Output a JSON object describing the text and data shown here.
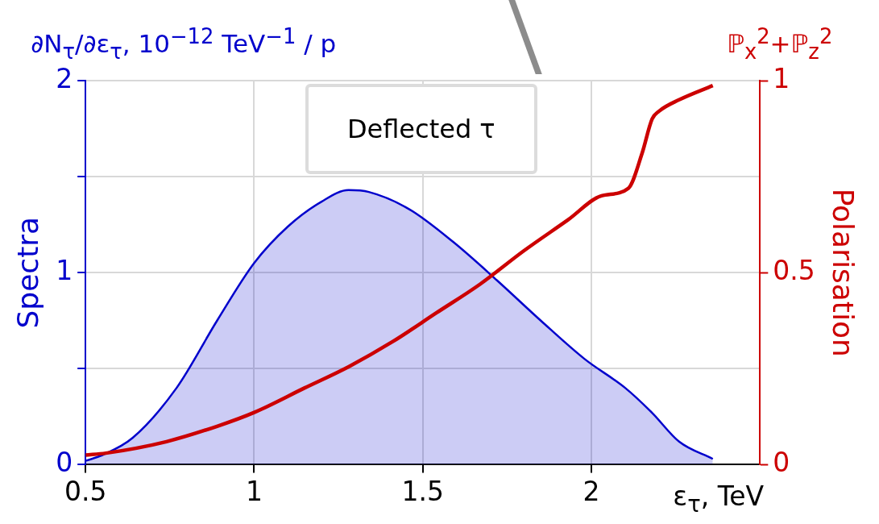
{
  "chart_data": {
    "type": "line",
    "title": "Deflected τ",
    "xlabel": "ε$_{τ}$, TeV",
    "ylabel": "Spectra",
    "y2label": "Polarisation",
    "annotations": [
      "∂N$_{τ}$/∂ε$_{τ}$, 10$^{−12}$ TeV$^{−1}$ / p",
      "ℙ$_{x}$$^{2}$+ℙ$_{z}$$^{2}$"
    ],
    "xlim": [
      0.5,
      2.5
    ],
    "xticks": [
      0.5,
      1,
      1.5,
      2
    ],
    "ylim": [
      0,
      2
    ],
    "yticks": [
      0,
      {
        "value": 0.5,
        "label": null
      },
      1,
      {
        "value": 1.5,
        "label": null
      },
      2
    ],
    "y2lim": [
      0,
      1
    ],
    "y2ticks": [
      0,
      0.5,
      1
    ],
    "grid": true,
    "marker": "none",
    "series": [
      {
        "type": "area",
        "color": "#0000cc",
        "x": [
          0.5,
          0.55,
          0.64,
          0.77,
          0.89,
          1.0,
          1.1,
          1.2,
          1.28,
          1.34,
          1.46,
          1.59,
          1.72,
          1.85,
          1.98,
          2.1,
          2.18,
          2.26,
          2.36
        ],
        "values": [
          0.02,
          0.05,
          0.14,
          0.4,
          0.75,
          1.05,
          1.24,
          1.37,
          1.43,
          1.42,
          1.33,
          1.16,
          0.96,
          0.75,
          0.55,
          0.4,
          0.27,
          0.12,
          0.03
        ]
      },
      {
        "type": "line",
        "axis": "y2",
        "color": "#cc0000",
        "x": [
          0.5,
          0.56,
          0.74,
          0.89,
          1.0,
          1.15,
          1.28,
          1.41,
          1.54,
          1.67,
          1.8,
          1.93,
          2.03,
          2.11,
          2.15,
          2.18,
          2.2,
          2.26,
          2.36
        ],
        "values": [
          0.025,
          0.03,
          0.06,
          0.1,
          0.136,
          0.2,
          0.255,
          0.32,
          0.395,
          0.47,
          0.557,
          0.637,
          0.7,
          0.72,
          0.81,
          0.9,
          0.92,
          0.95,
          0.987
        ]
      }
    ]
  }
}
